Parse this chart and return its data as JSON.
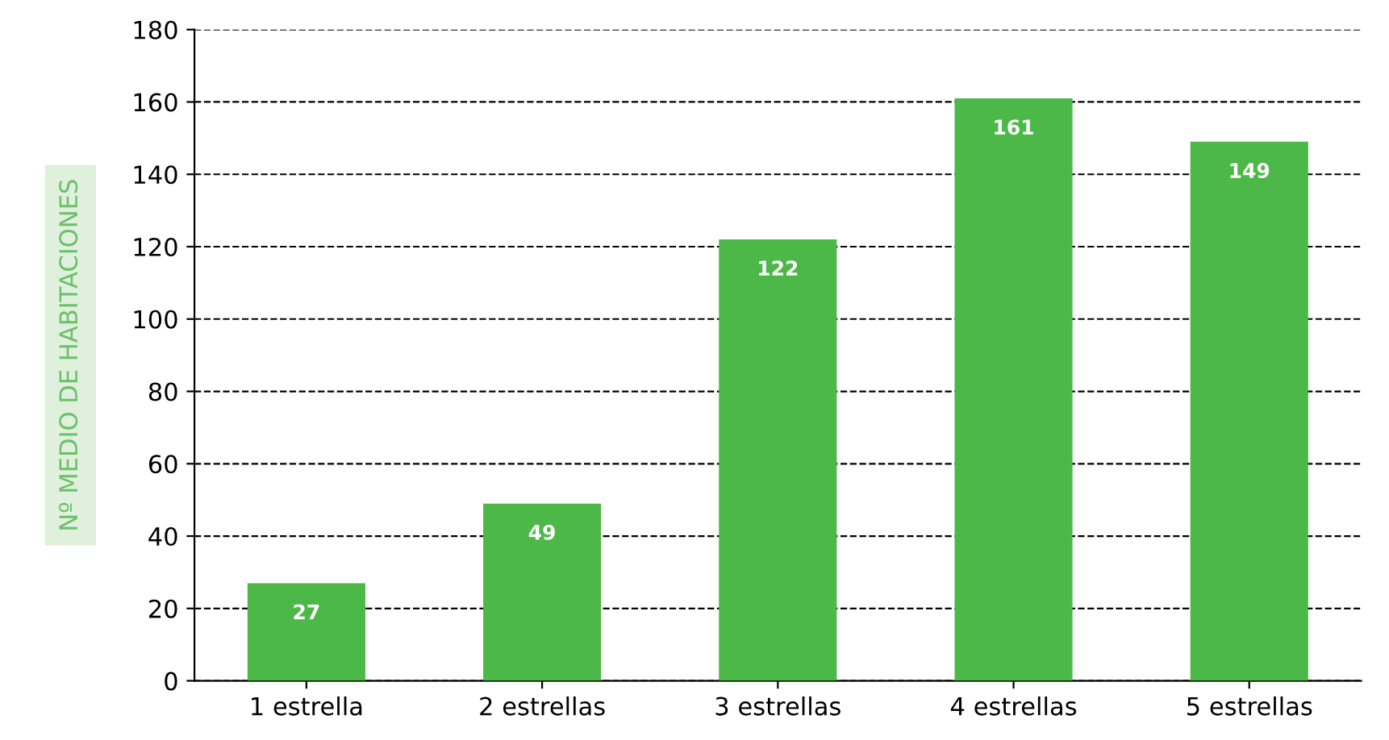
{
  "chart_data": {
    "type": "bar",
    "ylabel": "Nº MEDIO DE HABITACIONES",
    "categories": [
      "1 estrella",
      "2 estrellas",
      "3 estrellas",
      "4 estrellas",
      "5 estrellas"
    ],
    "values": [
      27,
      49,
      122,
      161,
      149
    ],
    "color": "#4cb848",
    "ylim": [
      0,
      180
    ],
    "yticks": [
      0,
      20,
      40,
      60,
      80,
      100,
      120,
      140,
      160,
      180
    ],
    "grid": "y",
    "data_labels": true
  }
}
